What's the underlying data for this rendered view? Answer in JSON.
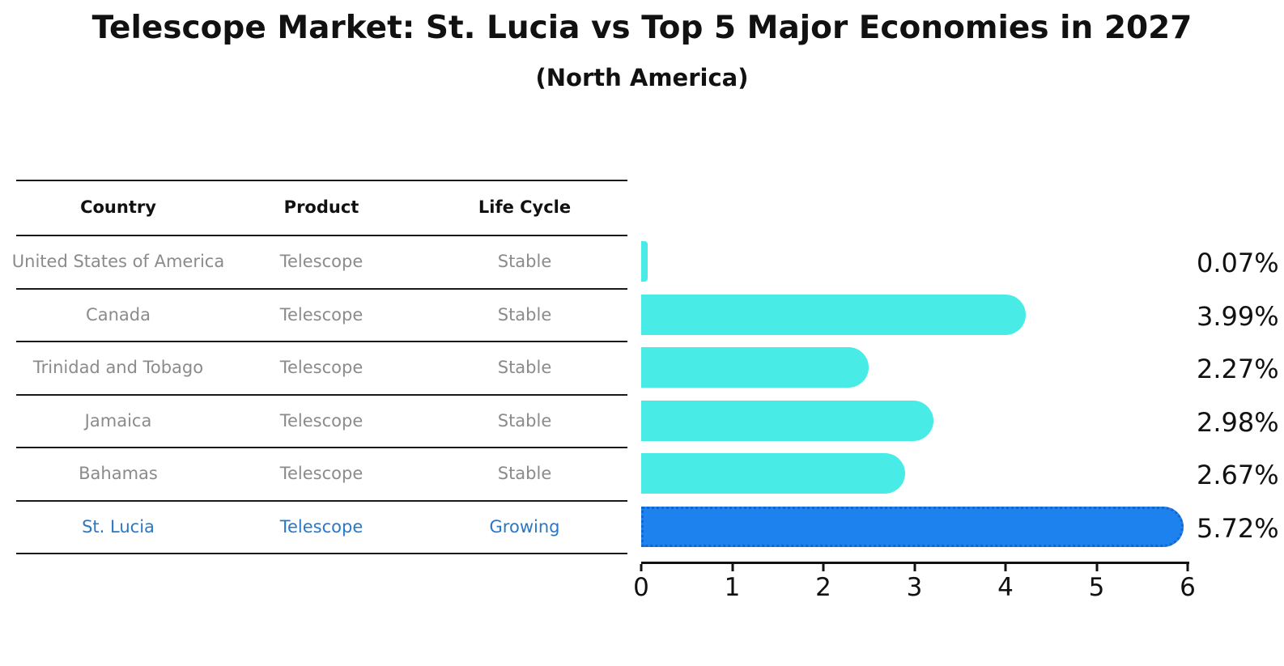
{
  "title": "Telescope Market: St. Lucia vs Top 5 Major Economies in 2027",
  "subtitle": "(North America)",
  "colors": {
    "bar_default": "#48EBE6",
    "bar_highlight": "#1E82EE",
    "bar_highlight_border": "#1565CD",
    "row_text": "#8B8B8B",
    "highlight_row_text": "#2878C8",
    "header_text": "#111111",
    "axis": "#111111",
    "background": "#FFFFFF"
  },
  "table": {
    "headers": [
      "Country",
      "Product",
      "Life Cycle"
    ],
    "rows": [
      {
        "country": "United States of America",
        "product": "Telescope",
        "life_cycle": "Stable",
        "highlighted": false
      },
      {
        "country": "Canada",
        "product": "Telescope",
        "life_cycle": "Stable",
        "highlighted": false
      },
      {
        "country": "Trinidad and Tobago",
        "product": "Telescope",
        "life_cycle": "Stable",
        "highlighted": false
      },
      {
        "country": "Jamaica",
        "product": "Telescope",
        "life_cycle": "Stable",
        "highlighted": false
      },
      {
        "country": "Bahamas",
        "product": "Telescope",
        "life_cycle": "Stable",
        "highlighted": false
      },
      {
        "country": "St. Lucia",
        "product": "Telescope",
        "life_cycle": "Growing",
        "highlighted": true
      }
    ]
  },
  "chart_data": {
    "type": "bar",
    "orientation": "horizontal",
    "title": "Telescope Market: St. Lucia vs Top 5 Major Economies in 2027 (North America)",
    "categories": [
      "United States of America",
      "Canada",
      "Trinidad and Tobago",
      "Jamaica",
      "Bahamas",
      "St. Lucia"
    ],
    "values": [
      0.07,
      3.99,
      2.27,
      2.98,
      2.67,
      5.72
    ],
    "value_labels": [
      "0.07%",
      "3.99%",
      "2.27%",
      "2.98%",
      "2.67%",
      "5.72%"
    ],
    "highlighted_index": 5,
    "highlight_category": "St. Lucia",
    "xlabel": "",
    "ylabel": "",
    "xlim": [
      0,
      6
    ],
    "x_ticks": [
      "0",
      "1",
      "2",
      "3",
      "4",
      "5",
      "6"
    ],
    "grid": false,
    "legend": false
  }
}
